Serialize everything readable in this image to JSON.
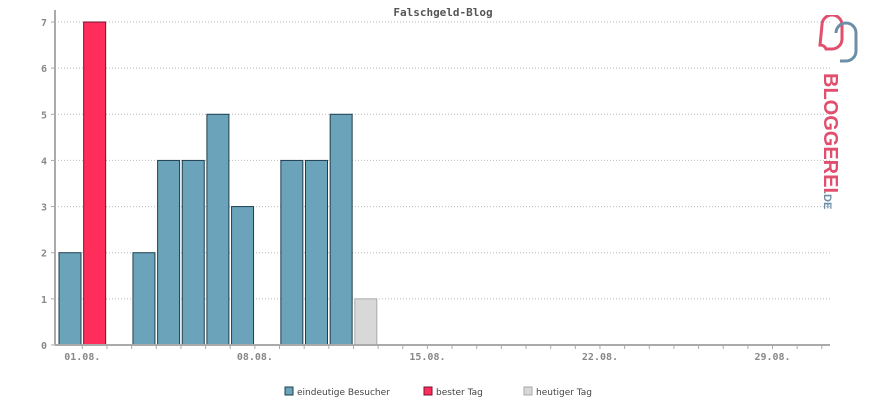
{
  "chart_data": {
    "type": "bar",
    "title": "Falschgeld-Blog",
    "xlabel": "",
    "ylabel": "",
    "ylim": [
      0,
      7
    ],
    "yticks": [
      0,
      1,
      2,
      3,
      4,
      5,
      6,
      7
    ],
    "grid": true,
    "x_tick_labels": [
      "01.08.",
      "08.08.",
      "15.08.",
      "22.08.",
      "29.08."
    ],
    "days": [
      1,
      2,
      3,
      4,
      5,
      6,
      7,
      8,
      9,
      10,
      11,
      12,
      13,
      14,
      15,
      16,
      17,
      18,
      19,
      20,
      21,
      22,
      23,
      24,
      25,
      26,
      27,
      28,
      29,
      30,
      31
    ],
    "values": [
      2,
      7,
      0,
      2,
      4,
      4,
      5,
      3,
      0,
      4,
      4,
      5,
      1,
      null,
      null,
      null,
      null,
      null,
      null,
      null,
      null,
      null,
      null,
      null,
      null,
      null,
      null,
      null,
      null,
      null,
      null
    ],
    "best_day": 2,
    "today": 13,
    "legend": [
      {
        "label": "eindeutige Besucher",
        "color": "#6ba3ba"
      },
      {
        "label": "bester Tag",
        "color": "#ff2d5a"
      },
      {
        "label": "heutiger Tag",
        "color": "#d8d8d8"
      }
    ],
    "legend_position": "bottom",
    "colors": {
      "visitor": "#6ba3ba",
      "best": "#ff2d5a",
      "today": "#d8d8d8",
      "axis": "#aaaaaa",
      "grid": "#bbbbbb"
    }
  },
  "brand": {
    "text": "BLOGGEREI",
    "suffix": ".DE",
    "color_red": "#e0506e",
    "color_blue": "#6c8ea6"
  }
}
